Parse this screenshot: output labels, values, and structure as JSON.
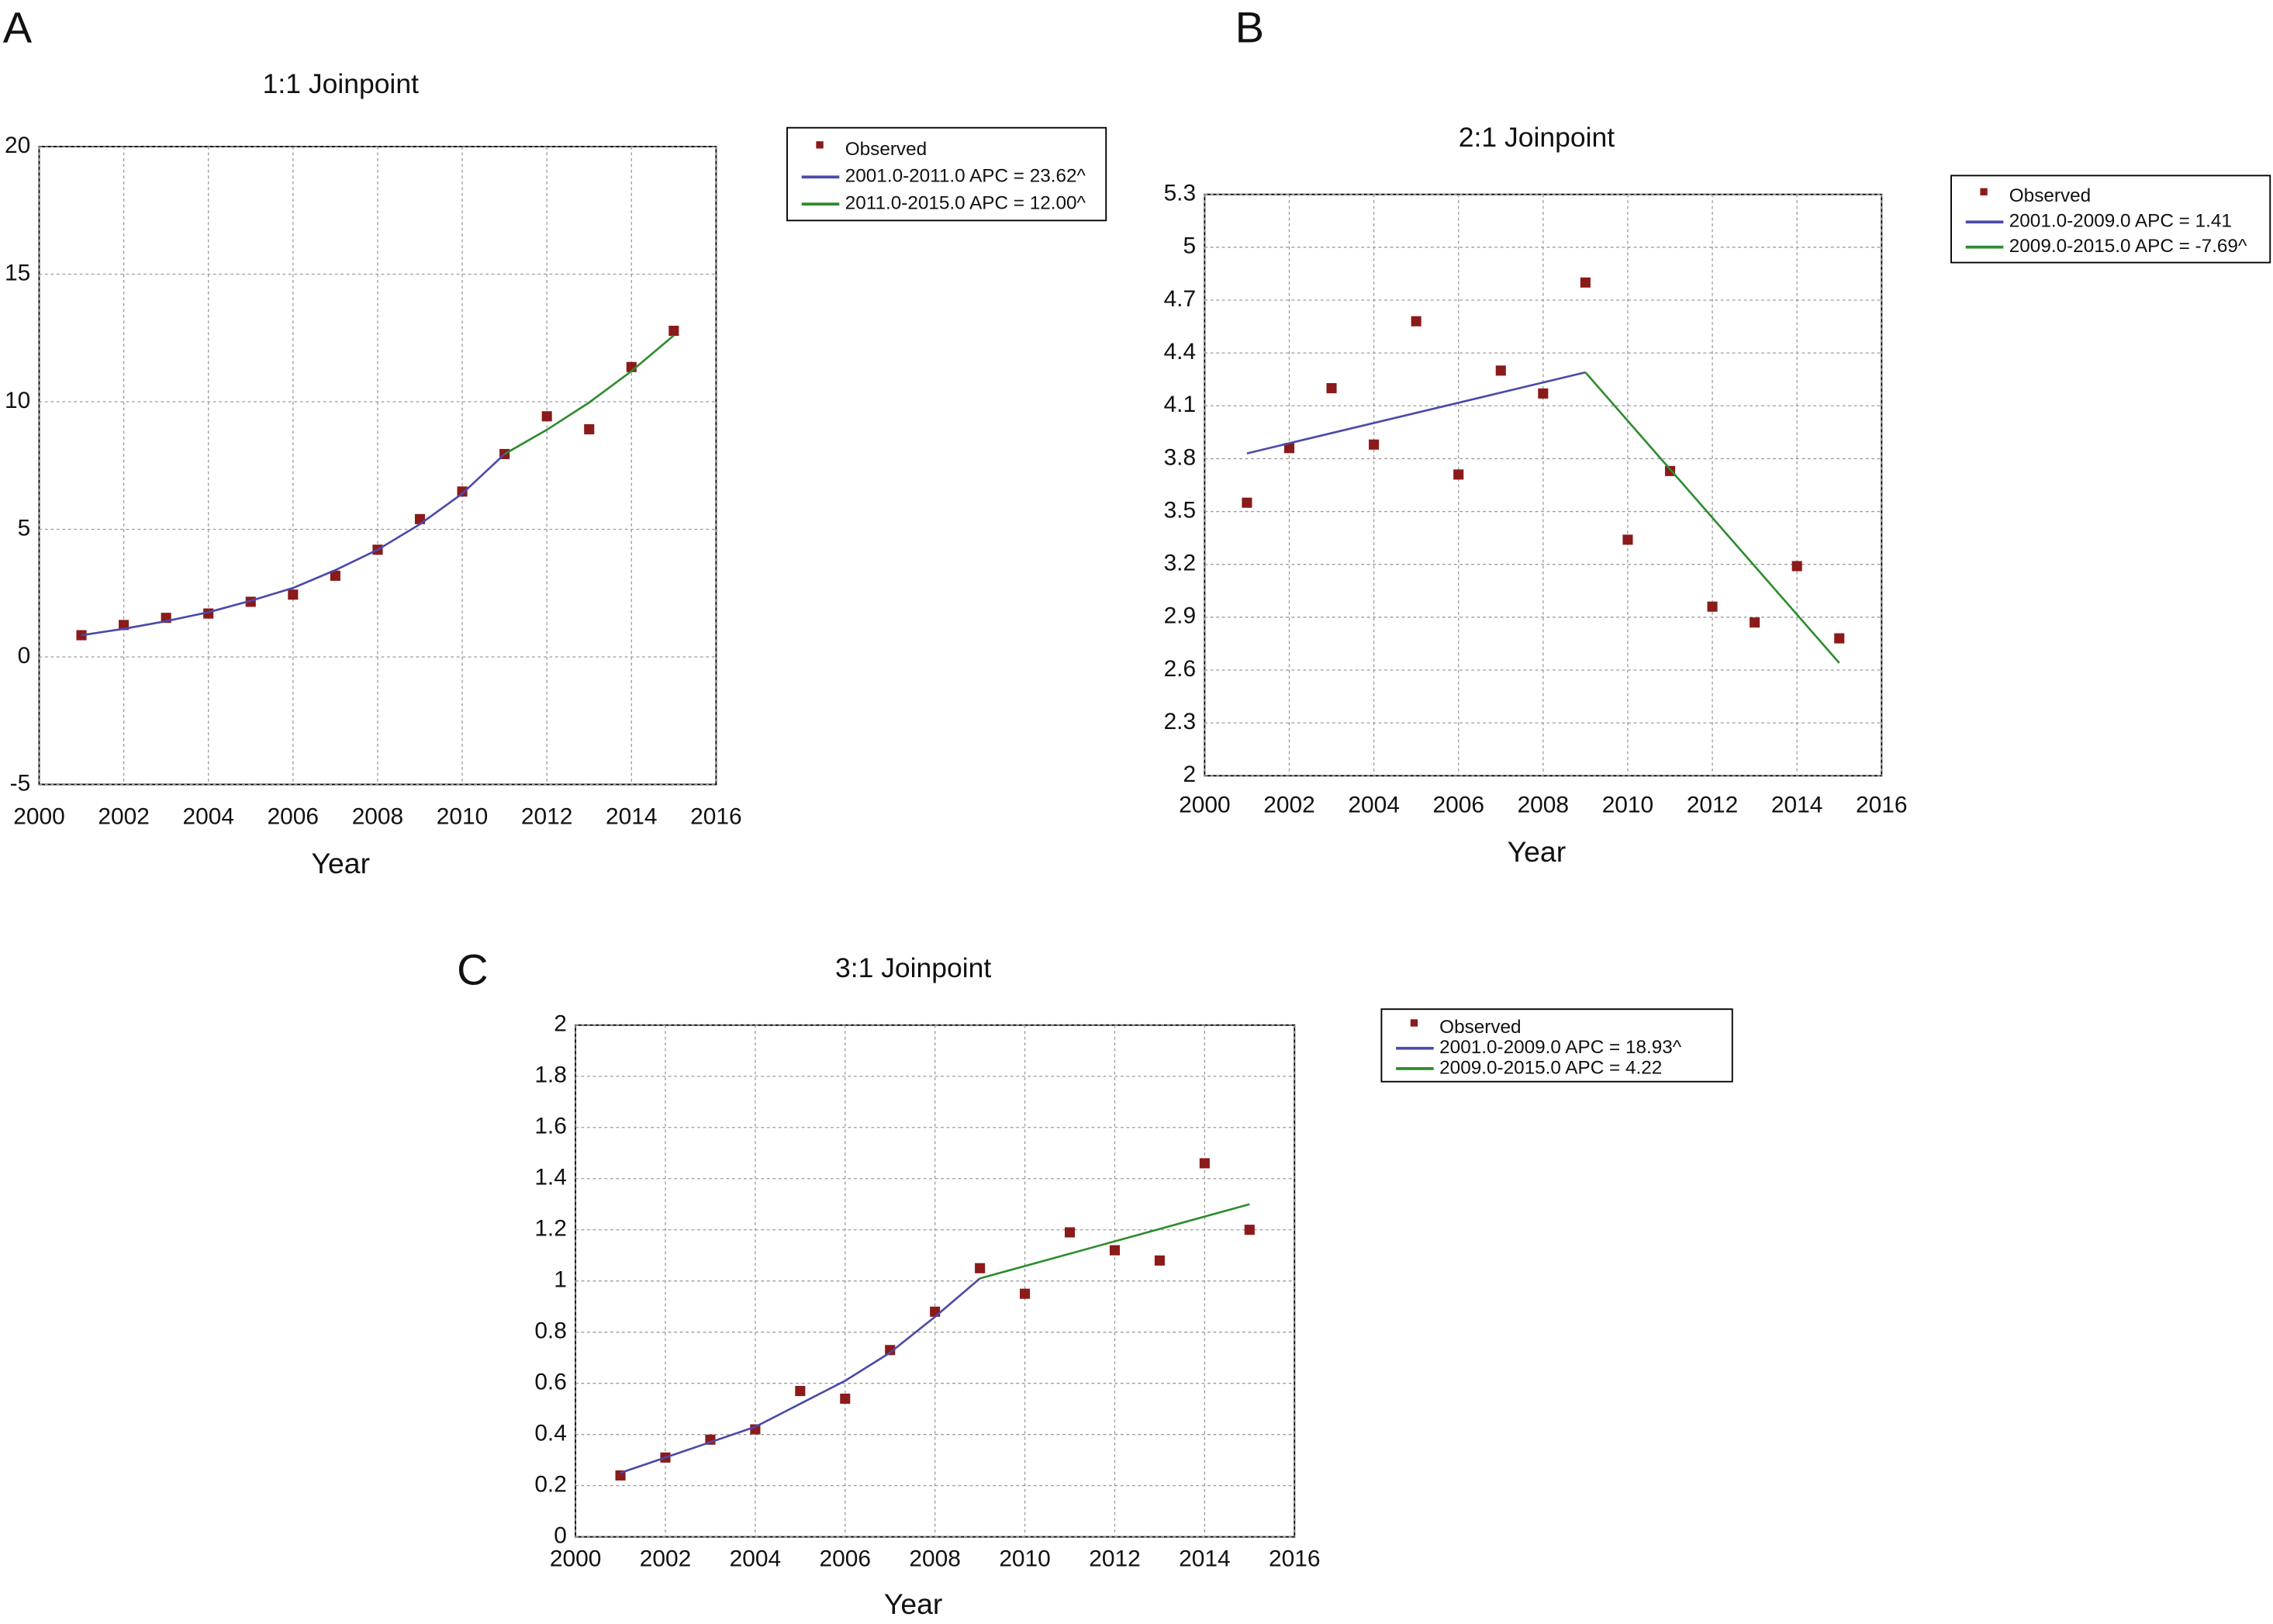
{
  "chart_data": [
    {
      "type": "line",
      "panel": "A",
      "title": "1:1 Joinpoint",
      "xlabel": "Year",
      "xlim": [
        2000,
        2016
      ],
      "xticks": [
        2000,
        2002,
        2004,
        2006,
        2008,
        2010,
        2012,
        2014,
        2016
      ],
      "ylim": [
        -5,
        20
      ],
      "yticks": [
        -5,
        0,
        5,
        10,
        15,
        20
      ],
      "grid": true,
      "legend": "outside-right",
      "series": [
        {
          "name": "Observed",
          "type": "scatter",
          "color": "#8b1a1a",
          "x": [
            2001,
            2002,
            2003,
            2004,
            2005,
            2006,
            2007,
            2008,
            2009,
            2010,
            2011,
            2012,
            2013,
            2014,
            2015
          ],
          "values": [
            0.85,
            1.25,
            1.53,
            1.7,
            2.16,
            2.44,
            3.18,
            4.2,
            5.4,
            6.48,
            7.95,
            9.43,
            8.92,
            11.36,
            12.78
          ]
        },
        {
          "name": "2001.0-2011.0 APC = 23.62^",
          "type": "line",
          "color": "#4a4aa8",
          "x": [
            2001,
            2002,
            2003,
            2004,
            2005,
            2006,
            2007,
            2008,
            2009,
            2010,
            2011
          ],
          "values": [
            0.85,
            1.1,
            1.4,
            1.75,
            2.2,
            2.7,
            3.4,
            4.2,
            5.2,
            6.4,
            7.95
          ]
        },
        {
          "name": "2011.0-2015.0 APC = 12.00^",
          "type": "line",
          "color": "#2e8b2e",
          "x": [
            2011,
            2012,
            2013,
            2014,
            2015
          ],
          "values": [
            7.95,
            8.9,
            9.97,
            11.2,
            12.6
          ]
        }
      ]
    },
    {
      "type": "line",
      "panel": "B",
      "title": "2:1 Joinpoint",
      "xlabel": "Year",
      "xlim": [
        2000,
        2016
      ],
      "xticks": [
        2000,
        2002,
        2004,
        2006,
        2008,
        2010,
        2012,
        2014,
        2016
      ],
      "ylim": [
        2,
        5.3
      ],
      "yticks": [
        2,
        2.3,
        2.6,
        2.9,
        3.2,
        3.5,
        3.8,
        4.1,
        4.4,
        4.7,
        5,
        5.3
      ],
      "grid": true,
      "legend": "outside-right",
      "series": [
        {
          "name": "Observed",
          "type": "scatter",
          "color": "#8b1a1a",
          "x": [
            2001,
            2002,
            2003,
            2004,
            2005,
            2006,
            2007,
            2008,
            2009,
            2010,
            2011,
            2012,
            2013,
            2014,
            2015
          ],
          "values": [
            3.55,
            3.86,
            4.2,
            3.88,
            4.58,
            3.71,
            4.3,
            4.17,
            4.8,
            3.34,
            3.73,
            2.96,
            2.87,
            3.19,
            2.78
          ]
        },
        {
          "name": "2001.0-2009.0 APC = 1.41",
          "type": "line",
          "color": "#4a4aa8",
          "x": [
            2001,
            2009
          ],
          "values": [
            3.83,
            4.29
          ]
        },
        {
          "name": "2009.0-2015.0 APC = -7.69^",
          "type": "line",
          "color": "#2e8b2e",
          "x": [
            2009,
            2015
          ],
          "values": [
            4.29,
            2.64
          ]
        }
      ]
    },
    {
      "type": "line",
      "panel": "C",
      "title": "3:1 Joinpoint",
      "xlabel": "Year",
      "xlim": [
        2000,
        2016
      ],
      "xticks": [
        2000,
        2002,
        2004,
        2006,
        2008,
        2010,
        2012,
        2014,
        2016
      ],
      "ylim": [
        0,
        2
      ],
      "yticks": [
        0,
        0.2,
        0.4,
        0.6,
        0.8,
        1,
        1.2,
        1.4,
        1.6,
        1.8,
        2
      ],
      "grid": true,
      "legend": "outside-right",
      "series": [
        {
          "name": "Observed",
          "type": "scatter",
          "color": "#8b1a1a",
          "x": [
            2001,
            2002,
            2003,
            2004,
            2005,
            2006,
            2007,
            2008,
            2009,
            2010,
            2011,
            2012,
            2013,
            2014,
            2015
          ],
          "values": [
            0.24,
            0.31,
            0.38,
            0.42,
            0.57,
            0.54,
            0.73,
            0.88,
            1.05,
            0.95,
            1.19,
            1.12,
            1.08,
            1.46,
            1.2
          ]
        },
        {
          "name": "2001.0-2009.0 APC = 18.93^",
          "type": "line",
          "color": "#4a4aa8",
          "x": [
            2001,
            2002,
            2003,
            2004,
            2005,
            2006,
            2007,
            2008,
            2009
          ],
          "values": [
            0.25,
            0.31,
            0.37,
            0.43,
            0.52,
            0.61,
            0.72,
            0.86,
            1.01
          ]
        },
        {
          "name": "2009.0-2015.0 APC = 4.22",
          "type": "line",
          "color": "#2e8b2e",
          "x": [
            2009,
            2015
          ],
          "values": [
            1.01,
            1.3
          ]
        }
      ]
    }
  ]
}
